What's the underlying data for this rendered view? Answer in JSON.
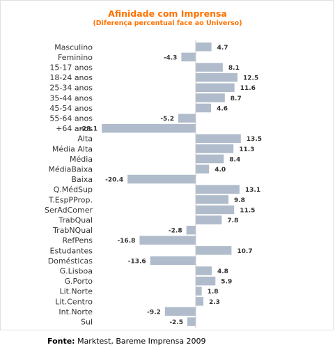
{
  "colors": {
    "bar": "#b0bccb",
    "title": "#ff7200",
    "axis": "#c8c8c8",
    "text": "#333333"
  },
  "chart_data": {
    "type": "bar",
    "orientation": "horizontal",
    "title": "Afinidade com Imprensa",
    "subtitle": "(Diferença percentual  face ao Universo)",
    "categories": [
      "Masculino",
      "Feminino",
      "15-17 anos",
      "18-24 anos",
      "25-34 anos",
      "35-44 anos",
      "45-54 anos",
      "55-64 anos",
      "+64 anos",
      "Alta",
      "Média Alta",
      "Média",
      "MédiaBaixa",
      "Baixa",
      "Q.MédSup",
      "T.EspPProp.",
      "SerAdComer",
      "TrabQual",
      "TrabNQual",
      "RefPens",
      "Estudantes",
      "Domésticas",
      "G.Lisboa",
      "G.Porto",
      "Lit.Norte",
      "Lit.Centro",
      "Int.Norte",
      "Sul"
    ],
    "values": [
      4.7,
      -4.3,
      8.1,
      12.5,
      11.6,
      8.7,
      4.6,
      -5.2,
      -28.1,
      13.5,
      11.3,
      8.4,
      4.0,
      -20.4,
      13.1,
      9.8,
      11.5,
      7.8,
      -2.8,
      -16.8,
      10.7,
      -13.6,
      4.8,
      5.9,
      1.8,
      2.3,
      -9.2,
      -2.5
    ],
    "value_labels": [
      "4.7",
      "-4.3",
      "8.1",
      "12.5",
      "11.6",
      "8.7",
      "4.6",
      "-5.2",
      "-28.1",
      "13.5",
      "11.3",
      "8.4",
      "4.0",
      "-20.4",
      "13.1",
      "9.8",
      "11.5",
      "7.8",
      "-2.8",
      "-16.8",
      "10.7",
      "-13.6",
      "4.8",
      "5.9",
      "1.8",
      "2.3",
      "-9.2",
      "-2.5"
    ],
    "grid": false
  },
  "source": {
    "label": "Fonte:",
    "text": " Marktest, Bareme Imprensa 2009"
  }
}
